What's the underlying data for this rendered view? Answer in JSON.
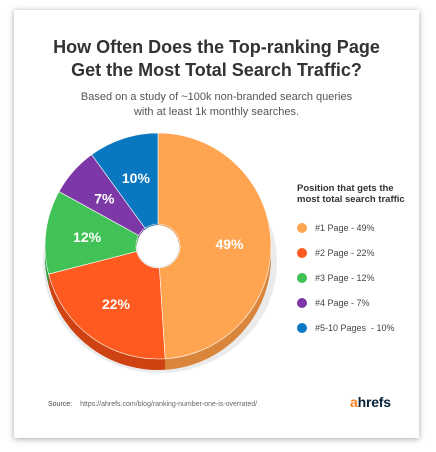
{
  "title_line1": "How Often Does the Top-ranking Page",
  "title_line2": "Get the Most Total Search Traffic?",
  "subtitle_line1": "Based on a study of ~100k non-branded search queries",
  "subtitle_line2": "with at least 1k monthly searches.",
  "legend_title_line1": "Position that gets the",
  "legend_title_line2": "most total search traffic",
  "source_label": "Source:",
  "source_url": "https://ahrefs.com/blog/ranking-number-one-is-overrated/",
  "logo": {
    "a": "a",
    "rest": "hrefs"
  },
  "chart_data": {
    "type": "pie",
    "donut": true,
    "title": "How Often Does the Top-ranking Page Get the Most Total Search Traffic?",
    "legend_position": "right",
    "categories": [
      "#1 Page - 49%",
      "#2 Page - 22%",
      "#3 Page - 12%",
      "#4 Page - 7%",
      "#5-10 Pages  - 10%"
    ],
    "values": [
      49,
      22,
      12,
      7,
      10
    ],
    "slice_labels": [
      "49%",
      "22%",
      "12%",
      "7%",
      "10%"
    ],
    "colors": [
      "#ffa552",
      "#ff5a1f",
      "#40c257",
      "#7d38a8",
      "#0a78c0"
    ],
    "side_colors": [
      "#d9863c",
      "#cf4312",
      "#2f9c43",
      "#5d2782",
      "#075c94"
    ]
  }
}
